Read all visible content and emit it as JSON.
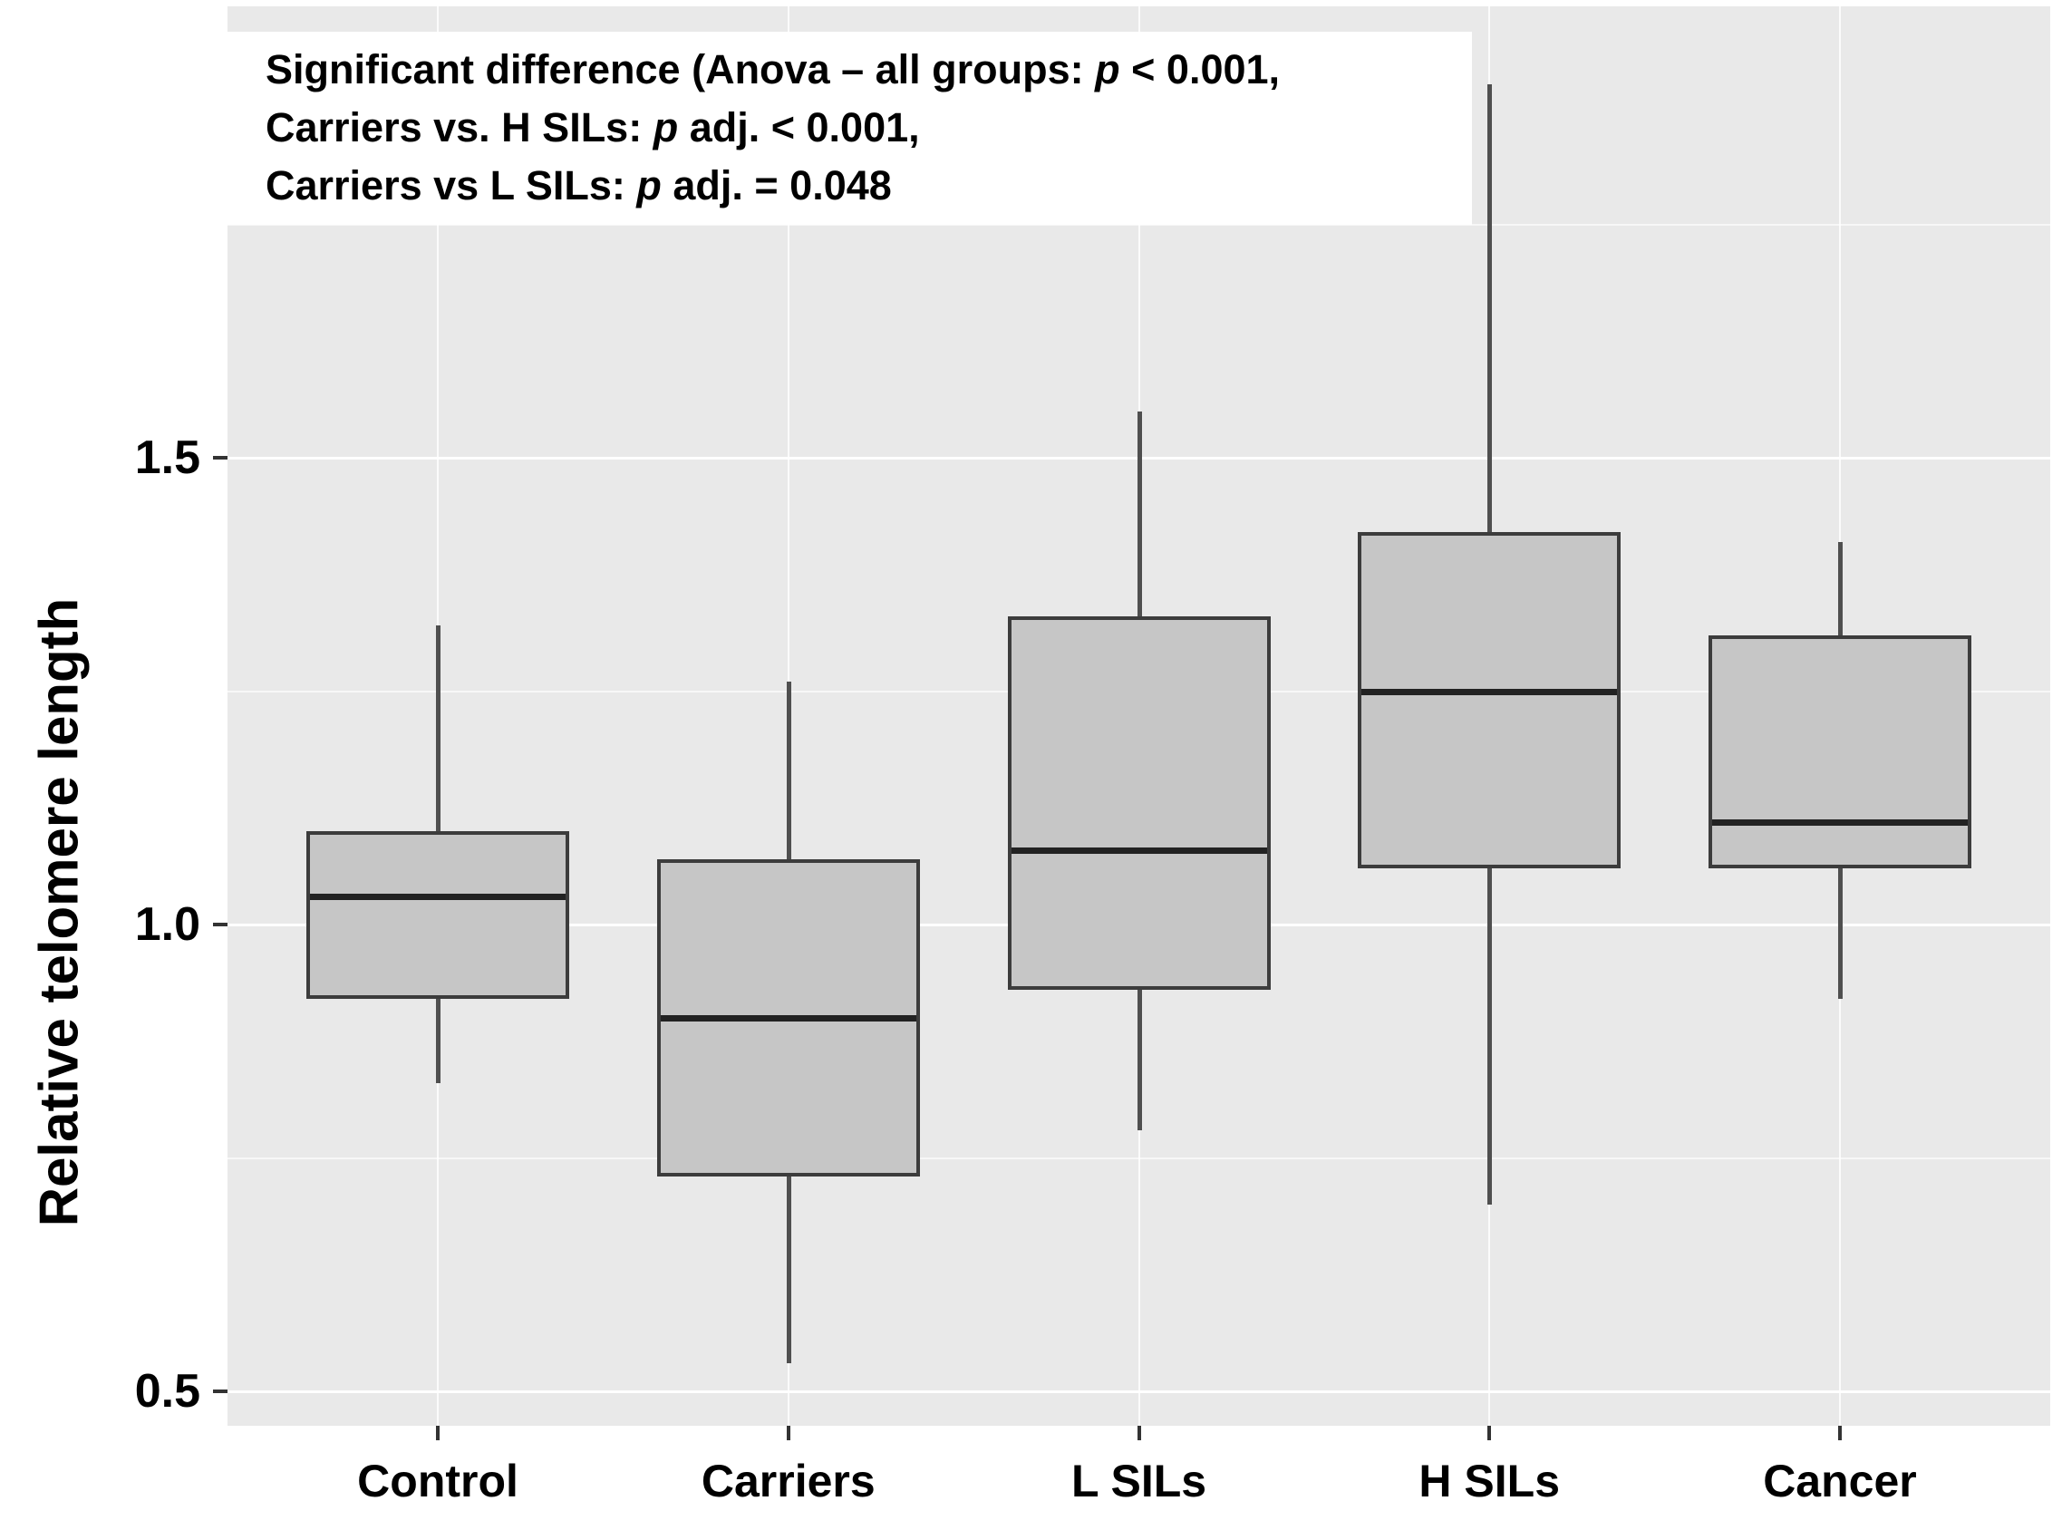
{
  "figure": {
    "kind": "ggplot-style boxplot figure"
  },
  "y_axis": {
    "title": "Relative telomere length",
    "tick_labels": [
      "1.5",
      "1.0",
      "0.5"
    ],
    "tick_values": [
      1.5,
      1.0,
      0.5
    ],
    "minor_grid_values": [
      1.75,
      1.25,
      0.75
    ]
  },
  "x_axis": {
    "categories": [
      "Control",
      "Carriers",
      "L SILs",
      "H SILs",
      "Cancer"
    ]
  },
  "annotation": {
    "lines": [
      [
        {
          "t": "Significant difference (Anova – all groups: "
        },
        {
          "t": "p",
          "i": true
        },
        {
          "t": " < 0.001,"
        }
      ],
      [
        {
          "t": "Carriers vs. H SILs: "
        },
        {
          "t": "p",
          "i": true
        },
        {
          "t": " adj. < 0.001,"
        }
      ],
      [
        {
          "t": "Carriers vs L SILs: "
        },
        {
          "t": "p",
          "i": true
        },
        {
          "t": " adj. = 0.048"
        }
      ]
    ]
  },
  "colors": {
    "panel_background": "#e9e9e9",
    "grid": "#ffffff",
    "box_fill": "#c6c6c6",
    "box_border": "#3c3c3c",
    "median": "#222222",
    "whisker": "#4f4f4f",
    "tick": "#333333",
    "text": "#000000",
    "annotation_background": "#ffffff"
  },
  "chart_data": {
    "type": "boxplot",
    "title": "",
    "xlabel": "",
    "ylabel": "Relative telomere length",
    "categories": [
      "Control",
      "Carriers",
      "L SILs",
      "H SILs",
      "Cancer"
    ],
    "series": [
      {
        "name": "Control",
        "whisker_low": 0.83,
        "q1": 0.92,
        "median": 1.03,
        "q3": 1.1,
        "whisker_high": 1.32
      },
      {
        "name": "Carriers",
        "whisker_low": 0.53,
        "q1": 0.73,
        "median": 0.9,
        "q3": 1.07,
        "whisker_high": 1.26
      },
      {
        "name": "L SILs",
        "whisker_low": 0.78,
        "q1": 0.93,
        "median": 1.08,
        "q3": 1.33,
        "whisker_high": 1.55
      },
      {
        "name": "H SILs",
        "whisker_low": 0.7,
        "q1": 1.06,
        "median": 1.25,
        "q3": 1.42,
        "whisker_high": 1.9
      },
      {
        "name": "Cancer",
        "whisker_low": 0.92,
        "q1": 1.06,
        "median": 1.11,
        "q3": 1.31,
        "whisker_high": 1.41
      }
    ],
    "ylim": [
      0.46,
      1.99
    ],
    "yticks": [
      0.5,
      1.0,
      1.5
    ],
    "grid": "white major gridlines at y ticks, white minor gridlines at 0.75/1.25/1.75, vertical white line at each category center, gray panel",
    "legend": "none",
    "annotation_text": "Significant difference (Anova – all groups: p < 0.001, Carriers vs. H SILs: p adj. < 0.001, Carriers vs L SILs: p adj. = 0.048"
  }
}
